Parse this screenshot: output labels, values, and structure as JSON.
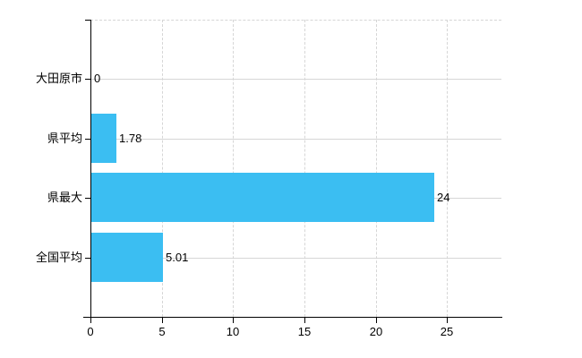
{
  "chart_data": {
    "type": "bar",
    "orientation": "horizontal",
    "categories": [
      "大田原市",
      "県平均",
      "県最大",
      "全国平均"
    ],
    "values": [
      0,
      1.78,
      24,
      5.01
    ],
    "value_labels": [
      "0",
      "1.78",
      "24",
      "5.01"
    ],
    "xticks": [
      0,
      5,
      10,
      15,
      20,
      25
    ],
    "xlim": [
      0,
      28.8
    ],
    "grid": true,
    "legend": "none",
    "title": "",
    "colors": {
      "bar": "#3BBEF2",
      "axis": "#000000",
      "grid": "#D6D6D6",
      "text": "#000000",
      "background": "#FFFFFF"
    }
  }
}
